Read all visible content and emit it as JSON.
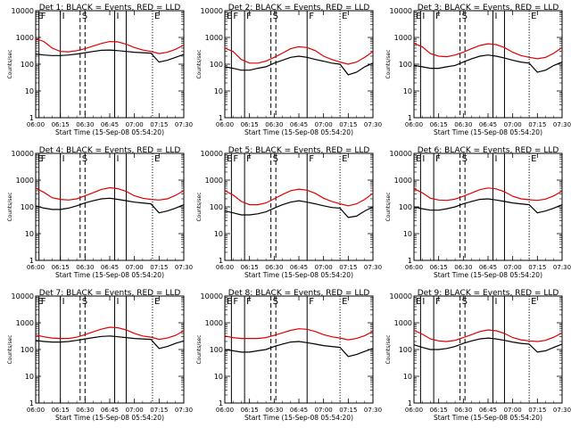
{
  "colors": {
    "events": "#000000",
    "lld": "#dd0000",
    "background": "#ffffff"
  },
  "time_ticks": [
    "06:00",
    "06:15",
    "06:30",
    "06:45",
    "07:00",
    "07:15",
    "07:30"
  ],
  "y_ticks": [
    "1",
    "10",
    "100",
    "1000",
    "10000"
  ],
  "chart_data": [
    {
      "type": "line",
      "title": "Det 1:  BLACK = Events, RED = LLD",
      "xlabel": "Start Time (15-Sep-08 05:54:20)",
      "ylabel": "Counts/sec",
      "y_scale": "log",
      "ylim": [
        1,
        10000
      ],
      "x_unit": "minutes after 06:00",
      "xlim": [
        0,
        90
      ],
      "grid": false,
      "x": [
        0,
        5,
        10,
        15,
        20,
        25,
        30,
        35,
        40,
        45,
        50,
        55,
        60,
        65,
        70,
        75,
        80,
        85,
        90
      ],
      "series": [
        {
          "key": "events",
          "values": [
            240,
            220,
            210,
            210,
            220,
            240,
            270,
            300,
            330,
            340,
            320,
            300,
            280,
            270,
            260,
            120,
            140,
            180,
            230
          ]
        },
        {
          "key": "lld",
          "values": [
            900,
            700,
            400,
            300,
            290,
            320,
            380,
            480,
            600,
            700,
            680,
            560,
            420,
            340,
            300,
            250,
            280,
            360,
            520
          ]
        }
      ],
      "markers": [
        {
          "label": "E",
          "x": 0,
          "style": "dotted"
        },
        {
          "label": "F",
          "x": 2,
          "style": "solid"
        },
        {
          "label": "I",
          "x": 15,
          "style": "solid"
        },
        {
          "label": "S",
          "x": 27,
          "style": "dashed"
        },
        {
          "label": "",
          "x": 30,
          "style": "dashed"
        },
        {
          "label": "I",
          "x": 48,
          "style": "solid"
        },
        {
          "label": "",
          "x": 55,
          "style": "solid"
        },
        {
          "label": "E",
          "x": 71,
          "style": "dotted"
        }
      ]
    },
    {
      "type": "line",
      "title": "Det 2:  BLACK = Events, RED = LLD",
      "xlabel": "Start Time (15-Sep-08 05:54:20)",
      "ylabel": "Counts/sec",
      "y_scale": "log",
      "ylim": [
        1,
        10000
      ],
      "x_unit": "minutes after 06:00",
      "xlim": [
        0,
        90
      ],
      "grid": false,
      "x": [
        0,
        5,
        10,
        15,
        20,
        25,
        30,
        35,
        40,
        45,
        50,
        55,
        60,
        65,
        70,
        75,
        80,
        85,
        90
      ],
      "series": [
        {
          "key": "events",
          "values": [
            80,
            70,
            60,
            60,
            70,
            80,
            110,
            140,
            180,
            200,
            180,
            150,
            130,
            110,
            100,
            40,
            50,
            80,
            110
          ]
        },
        {
          "key": "lld",
          "values": [
            400,
            300,
            150,
            110,
            110,
            130,
            180,
            260,
            380,
            450,
            420,
            320,
            200,
            150,
            120,
            100,
            120,
            180,
            300
          ]
        }
      ],
      "markers": [
        {
          "label": "E",
          "x": 0,
          "style": "dotted"
        },
        {
          "label": "F",
          "x": 4,
          "style": "solid"
        },
        {
          "label": "F",
          "x": 12,
          "style": "solid"
        },
        {
          "label": "S",
          "x": 28,
          "style": "dashed"
        },
        {
          "label": "",
          "x": 31,
          "style": "dashed"
        },
        {
          "label": "F",
          "x": 50,
          "style": "solid"
        },
        {
          "label": "E",
          "x": 70,
          "style": "dotted"
        }
      ]
    },
    {
      "type": "line",
      "title": "Det 3:  BLACK = Events, RED = LLD",
      "xlabel": "Start Time (15-Sep-08 05:54:20)",
      "ylabel": "Counts/sec",
      "y_scale": "log",
      "ylim": [
        1,
        10000
      ],
      "x_unit": "minutes after 06:00",
      "xlim": [
        0,
        90
      ],
      "grid": false,
      "x": [
        0,
        5,
        10,
        15,
        20,
        25,
        30,
        35,
        40,
        45,
        50,
        55,
        60,
        65,
        70,
        75,
        80,
        85,
        90
      ],
      "series": [
        {
          "key": "events",
          "values": [
            90,
            80,
            70,
            70,
            80,
            90,
            120,
            160,
            200,
            220,
            200,
            170,
            140,
            120,
            110,
            50,
            60,
            90,
            120
          ]
        },
        {
          "key": "lld",
          "values": [
            600,
            450,
            250,
            200,
            190,
            220,
            280,
            380,
            500,
            580,
            540,
            420,
            280,
            210,
            180,
            160,
            180,
            260,
            420
          ]
        }
      ],
      "markers": [
        {
          "label": "E",
          "x": 0,
          "style": "dotted"
        },
        {
          "label": "I",
          "x": 4,
          "style": "solid"
        },
        {
          "label": "F",
          "x": 12,
          "style": "solid"
        },
        {
          "label": "S",
          "x": 28,
          "style": "dashed"
        },
        {
          "label": "",
          "x": 31,
          "style": "dashed"
        },
        {
          "label": "I",
          "x": 48,
          "style": "solid"
        },
        {
          "label": "",
          "x": 55,
          "style": "solid"
        },
        {
          "label": "E",
          "x": 70,
          "style": "dotted"
        }
      ]
    },
    {
      "type": "line",
      "title": "Det 4:  BLACK = Events, RED = LLD",
      "xlabel": "Start Time (15-Sep-08 05:54:20)",
      "ylabel": "Counts/sec",
      "y_scale": "log",
      "ylim": [
        1,
        10000
      ],
      "x_unit": "minutes after 06:00",
      "xlim": [
        0,
        90
      ],
      "grid": false,
      "x": [
        0,
        5,
        10,
        15,
        20,
        25,
        30,
        35,
        40,
        45,
        50,
        55,
        60,
        65,
        70,
        75,
        80,
        85,
        90
      ],
      "series": [
        {
          "key": "events",
          "values": [
            110,
            90,
            80,
            80,
            90,
            110,
            140,
            170,
            200,
            210,
            190,
            170,
            150,
            140,
            130,
            60,
            70,
            90,
            120
          ]
        },
        {
          "key": "lld",
          "values": [
            500,
            350,
            220,
            190,
            180,
            200,
            260,
            340,
            450,
            520,
            480,
            380,
            260,
            210,
            190,
            180,
            200,
            270,
            400
          ]
        }
      ],
      "markers": [
        {
          "label": "E",
          "x": 0,
          "style": "dotted"
        },
        {
          "label": "F",
          "x": 2,
          "style": "solid"
        },
        {
          "label": "I",
          "x": 15,
          "style": "solid"
        },
        {
          "label": "S",
          "x": 27,
          "style": "dashed"
        },
        {
          "label": "",
          "x": 30,
          "style": "dashed"
        },
        {
          "label": "I",
          "x": 48,
          "style": "solid"
        },
        {
          "label": "",
          "x": 55,
          "style": "solid"
        },
        {
          "label": "E",
          "x": 71,
          "style": "dotted"
        }
      ]
    },
    {
      "type": "line",
      "title": "Det 5:  BLACK = Events, RED = LLD",
      "xlabel": "Start Time (15-Sep-08 05:54:20)",
      "ylabel": "Counts/sec",
      "y_scale": "log",
      "ylim": [
        1,
        10000
      ],
      "x_unit": "minutes after 06:00",
      "xlim": [
        0,
        90
      ],
      "grid": false,
      "x": [
        0,
        5,
        10,
        15,
        20,
        25,
        30,
        35,
        40,
        45,
        50,
        55,
        60,
        65,
        70,
        75,
        80,
        85,
        90
      ],
      "series": [
        {
          "key": "events",
          "values": [
            70,
            60,
            50,
            50,
            55,
            65,
            90,
            120,
            150,
            170,
            150,
            130,
            110,
            95,
            90,
            40,
            45,
            70,
            100
          ]
        },
        {
          "key": "lld",
          "values": [
            400,
            280,
            160,
            120,
            120,
            140,
            200,
            290,
            400,
            460,
            420,
            320,
            210,
            160,
            130,
            110,
            130,
            190,
            320
          ]
        }
      ],
      "markers": [
        {
          "label": "E",
          "x": 0,
          "style": "dotted"
        },
        {
          "label": "F",
          "x": 4,
          "style": "solid"
        },
        {
          "label": "F",
          "x": 12,
          "style": "solid"
        },
        {
          "label": "S",
          "x": 28,
          "style": "dashed"
        },
        {
          "label": "",
          "x": 31,
          "style": "dashed"
        },
        {
          "label": "F",
          "x": 50,
          "style": "solid"
        },
        {
          "label": "E",
          "x": 70,
          "style": "dotted"
        }
      ]
    },
    {
      "type": "line",
      "title": "Det 6:  BLACK = Events, RED = LLD",
      "xlabel": "Start Time (15-Sep-08 05:54:20)",
      "ylabel": "Counts/sec",
      "y_scale": "log",
      "ylim": [
        1,
        10000
      ],
      "x_unit": "minutes after 06:00",
      "xlim": [
        0,
        90
      ],
      "grid": false,
      "x": [
        0,
        5,
        10,
        15,
        20,
        25,
        30,
        35,
        40,
        45,
        50,
        55,
        60,
        65,
        70,
        75,
        80,
        85,
        90
      ],
      "series": [
        {
          "key": "events",
          "values": [
            100,
            85,
            75,
            75,
            85,
            100,
            130,
            160,
            190,
            200,
            180,
            160,
            140,
            130,
            120,
            60,
            70,
            90,
            120
          ]
        },
        {
          "key": "lld",
          "values": [
            480,
            340,
            210,
            180,
            175,
            195,
            250,
            330,
            440,
            510,
            470,
            370,
            250,
            200,
            185,
            175,
            195,
            260,
            390
          ]
        }
      ],
      "markers": [
        {
          "label": "E",
          "x": 0,
          "style": "dotted"
        },
        {
          "label": "I",
          "x": 4,
          "style": "solid"
        },
        {
          "label": "F",
          "x": 12,
          "style": "solid"
        },
        {
          "label": "S",
          "x": 28,
          "style": "dashed"
        },
        {
          "label": "",
          "x": 31,
          "style": "dashed"
        },
        {
          "label": "I",
          "x": 48,
          "style": "solid"
        },
        {
          "label": "",
          "x": 55,
          "style": "solid"
        },
        {
          "label": "E",
          "x": 70,
          "style": "dotted"
        }
      ]
    },
    {
      "type": "line",
      "title": "Det 7:  BLACK = Events, RED = LLD",
      "xlabel": "Start Time (15-Sep-08 05:54:20)",
      "ylabel": "Counts/sec",
      "y_scale": "log",
      "ylim": [
        1,
        10000
      ],
      "x_unit": "minutes after 06:00",
      "xlim": [
        0,
        90
      ],
      "grid": false,
      "x": [
        0,
        5,
        10,
        15,
        20,
        25,
        30,
        35,
        40,
        45,
        50,
        55,
        60,
        65,
        70,
        75,
        80,
        85,
        90
      ],
      "series": [
        {
          "key": "events",
          "values": [
            220,
            200,
            190,
            190,
            200,
            220,
            250,
            280,
            310,
            320,
            300,
            280,
            260,
            250,
            240,
            110,
            130,
            170,
            210
          ]
        },
        {
          "key": "lld",
          "values": [
            350,
            300,
            270,
            260,
            260,
            290,
            360,
            460,
            580,
            680,
            650,
            540,
            400,
            320,
            290,
            240,
            270,
            340,
            500
          ]
        }
      ],
      "markers": [
        {
          "label": "E",
          "x": 0,
          "style": "dotted"
        },
        {
          "label": "F",
          "x": 2,
          "style": "solid"
        },
        {
          "label": "I",
          "x": 15,
          "style": "solid"
        },
        {
          "label": "S",
          "x": 27,
          "style": "dashed"
        },
        {
          "label": "",
          "x": 30,
          "style": "dashed"
        },
        {
          "label": "I",
          "x": 48,
          "style": "solid"
        },
        {
          "label": "",
          "x": 55,
          "style": "solid"
        },
        {
          "label": "E",
          "x": 71,
          "style": "dotted"
        }
      ]
    },
    {
      "type": "line",
      "title": "Det 8:  BLACK = Events, RED = LLD",
      "xlabel": "Start Time (15-Sep-08 05:54:20)",
      "ylabel": "Counts/sec",
      "y_scale": "log",
      "ylim": [
        1,
        10000
      ],
      "x_unit": "minutes after 06:00",
      "xlim": [
        0,
        90
      ],
      "grid": false,
      "x": [
        0,
        5,
        10,
        15,
        20,
        25,
        30,
        35,
        40,
        45,
        50,
        55,
        60,
        65,
        70,
        75,
        80,
        85,
        90
      ],
      "series": [
        {
          "key": "events",
          "values": [
            100,
            90,
            80,
            80,
            90,
            100,
            130,
            160,
            190,
            200,
            180,
            160,
            140,
            130,
            120,
            55,
            65,
            85,
            110
          ]
        },
        {
          "key": "lld",
          "values": [
            320,
            280,
            260,
            260,
            260,
            280,
            340,
            420,
            520,
            600,
            570,
            470,
            360,
            300,
            270,
            230,
            260,
            330,
            480
          ]
        }
      ],
      "markers": [
        {
          "label": "E",
          "x": 0,
          "style": "dotted"
        },
        {
          "label": "F",
          "x": 4,
          "style": "solid"
        },
        {
          "label": "F",
          "x": 12,
          "style": "solid"
        },
        {
          "label": "S",
          "x": 28,
          "style": "dashed"
        },
        {
          "label": "",
          "x": 31,
          "style": "dashed"
        },
        {
          "label": "F",
          "x": 50,
          "style": "solid"
        },
        {
          "label": "E",
          "x": 70,
          "style": "dotted"
        }
      ]
    },
    {
      "type": "line",
      "title": "Det 9:  BLACK = Events, RED = LLD",
      "xlabel": "Start Time (15-Sep-08 05:54:20)",
      "ylabel": "Counts/sec",
      "y_scale": "log",
      "ylim": [
        1,
        10000
      ],
      "x_unit": "minutes after 06:00",
      "xlim": [
        0,
        90
      ],
      "grid": false,
      "x": [
        0,
        5,
        10,
        15,
        20,
        25,
        30,
        35,
        40,
        45,
        50,
        55,
        60,
        65,
        70,
        75,
        80,
        85,
        90
      ],
      "series": [
        {
          "key": "events",
          "values": [
            150,
            120,
            100,
            100,
            110,
            130,
            170,
            210,
            250,
            270,
            250,
            220,
            190,
            170,
            160,
            80,
            90,
            120,
            160
          ]
        },
        {
          "key": "lld",
          "values": [
            520,
            380,
            250,
            210,
            200,
            220,
            280,
            360,
            470,
            540,
            500,
            400,
            280,
            230,
            210,
            200,
            220,
            290,
            420
          ]
        }
      ],
      "markers": [
        {
          "label": "E",
          "x": 0,
          "style": "dotted"
        },
        {
          "label": "I",
          "x": 4,
          "style": "solid"
        },
        {
          "label": "F",
          "x": 12,
          "style": "solid"
        },
        {
          "label": "S",
          "x": 28,
          "style": "dashed"
        },
        {
          "label": "",
          "x": 31,
          "style": "dashed"
        },
        {
          "label": "I",
          "x": 48,
          "style": "solid"
        },
        {
          "label": "",
          "x": 55,
          "style": "solid"
        },
        {
          "label": "E",
          "x": 70,
          "style": "dotted"
        }
      ]
    }
  ]
}
